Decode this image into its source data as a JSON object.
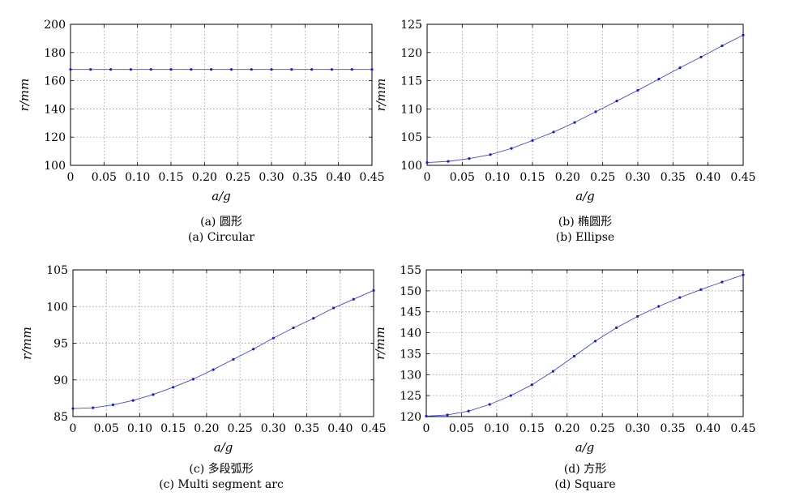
{
  "chart_data": [
    {
      "type": "line",
      "caption_cn": "(a) 圆形",
      "caption_en": "(a) Circular",
      "xlabel": "a/g",
      "ylabel": "r/mm",
      "xlim": [
        0,
        0.45
      ],
      "ylim": [
        100,
        200
      ],
      "xticks": [
        "0",
        "0.05",
        "0.10",
        "0.15",
        "0.20",
        "0.25",
        "0.30",
        "0.35",
        "0.40",
        "0.45"
      ],
      "yticks": [
        "100",
        "120",
        "140",
        "160",
        "180",
        "200"
      ],
      "x": [
        0,
        0.03,
        0.06,
        0.09,
        0.12,
        0.15,
        0.18,
        0.21,
        0.24,
        0.27,
        0.3,
        0.33,
        0.36,
        0.39,
        0.42,
        0.45
      ],
      "y": [
        168,
        168,
        168,
        168,
        168,
        168,
        168,
        168,
        168,
        168,
        168,
        168,
        168,
        168,
        168,
        168
      ]
    },
    {
      "type": "line",
      "caption_cn": "(b) 椭圆形",
      "caption_en": "(b) Ellipse",
      "xlabel": "a/g",
      "ylabel": "r/mm",
      "xlim": [
        0,
        0.45
      ],
      "ylim": [
        100,
        125
      ],
      "xticks": [
        "0",
        "0.05",
        "0.10",
        "0.15",
        "0.20",
        "0.25",
        "0.30",
        "0.35",
        "0.40",
        "0.45"
      ],
      "yticks": [
        "100",
        "105",
        "110",
        "115",
        "120",
        "125"
      ],
      "x": [
        0,
        0.03,
        0.06,
        0.09,
        0.12,
        0.15,
        0.18,
        0.21,
        0.24,
        0.27,
        0.3,
        0.33,
        0.36,
        0.39,
        0.42,
        0.45
      ],
      "y": [
        100.5,
        100.7,
        101.2,
        101.9,
        103.0,
        104.4,
        105.9,
        107.6,
        109.5,
        111.4,
        113.3,
        115.3,
        117.3,
        119.2,
        121.2,
        123.1
      ]
    },
    {
      "type": "line",
      "caption_cn": "(c) 多段弧形",
      "caption_en": "(c) Multi segment arc",
      "xlabel": "a/g",
      "ylabel": "r/mm",
      "xlim": [
        0,
        0.45
      ],
      "ylim": [
        85,
        105
      ],
      "xticks": [
        "0",
        "0.05",
        "0.10",
        "0.15",
        "0.20",
        "0.25",
        "0.30",
        "0.35",
        "0.40",
        "0.45"
      ],
      "yticks": [
        "85",
        "90",
        "95",
        "100",
        "105"
      ],
      "x": [
        0,
        0.03,
        0.06,
        0.09,
        0.12,
        0.15,
        0.18,
        0.21,
        0.24,
        0.27,
        0.3,
        0.33,
        0.36,
        0.39,
        0.42,
        0.45
      ],
      "y": [
        86.1,
        86.2,
        86.6,
        87.2,
        88.0,
        89.0,
        90.1,
        91.4,
        92.8,
        94.2,
        95.7,
        97.1,
        98.4,
        99.8,
        101.0,
        102.2
      ]
    },
    {
      "type": "line",
      "caption_cn": "(d) 方形",
      "caption_en": "(d) Square",
      "xlabel": "a/g",
      "ylabel": "r/mm",
      "xlim": [
        0,
        0.45
      ],
      "ylim": [
        120,
        155
      ],
      "xticks": [
        "0",
        "0.05",
        "0.10",
        "0.15",
        "0.20",
        "0.25",
        "0.30",
        "0.35",
        "0.40",
        "0.45"
      ],
      "yticks": [
        "120",
        "125",
        "130",
        "135",
        "140",
        "145",
        "150",
        "155"
      ],
      "x": [
        0,
        0.03,
        0.06,
        0.09,
        0.12,
        0.15,
        0.18,
        0.21,
        0.24,
        0.27,
        0.3,
        0.33,
        0.36,
        0.39,
        0.42,
        0.45
      ],
      "y": [
        120.1,
        120.4,
        121.3,
        122.9,
        125.0,
        127.6,
        130.8,
        134.4,
        138.0,
        141.2,
        143.9,
        146.3,
        148.4,
        150.3,
        152.1,
        153.8
      ]
    }
  ]
}
